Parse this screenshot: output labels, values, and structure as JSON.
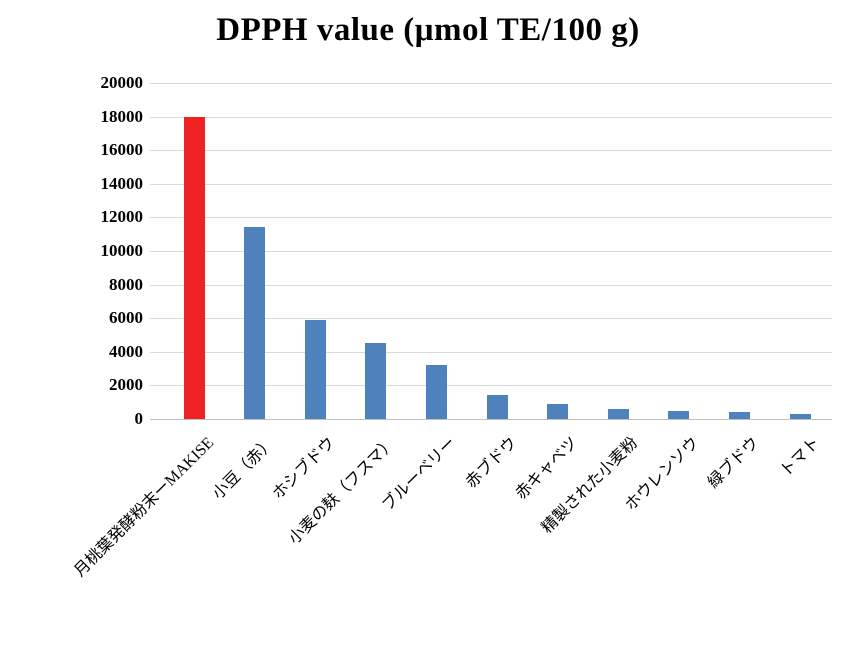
{
  "chart_data": {
    "type": "bar",
    "title": "DPPH value (μmol TE/100 g)",
    "xlabel": "",
    "ylabel": "",
    "categories": [
      "月桃葉発酵粉末ーMAKISE",
      "小豆（赤）",
      "ホシブドウ",
      "小麦の麸（フスマ）",
      "ブルーベリー",
      "赤ブドウ",
      "赤キャベツ",
      "精製された小麦粉",
      "ホウレンソウ",
      "緑ブドウ",
      "トマト"
    ],
    "values": [
      18000,
      11400,
      5900,
      4500,
      3200,
      1400,
      900,
      600,
      450,
      420,
      300
    ],
    "bar_colors": [
      "#EE2222",
      "#4F81BD",
      "#4F81BD",
      "#4F81BD",
      "#4F81BD",
      "#4F81BD",
      "#4F81BD",
      "#4F81BD",
      "#4F81BD",
      "#4F81BD",
      "#4F81BD"
    ],
    "ylim": [
      0,
      20000
    ],
    "ytick_step": 2000,
    "yticks": [
      0,
      2000,
      4000,
      6000,
      8000,
      10000,
      12000,
      14000,
      16000,
      18000,
      20000
    ],
    "grid": true,
    "legend": "none"
  },
  "colors": {
    "highlight_bar": "#EE2222",
    "default_bar": "#4F81BD",
    "gridline": "#D9D9D9",
    "axis_line": "#BFBFBF",
    "text": "#000000",
    "background": "#FFFFFF"
  }
}
